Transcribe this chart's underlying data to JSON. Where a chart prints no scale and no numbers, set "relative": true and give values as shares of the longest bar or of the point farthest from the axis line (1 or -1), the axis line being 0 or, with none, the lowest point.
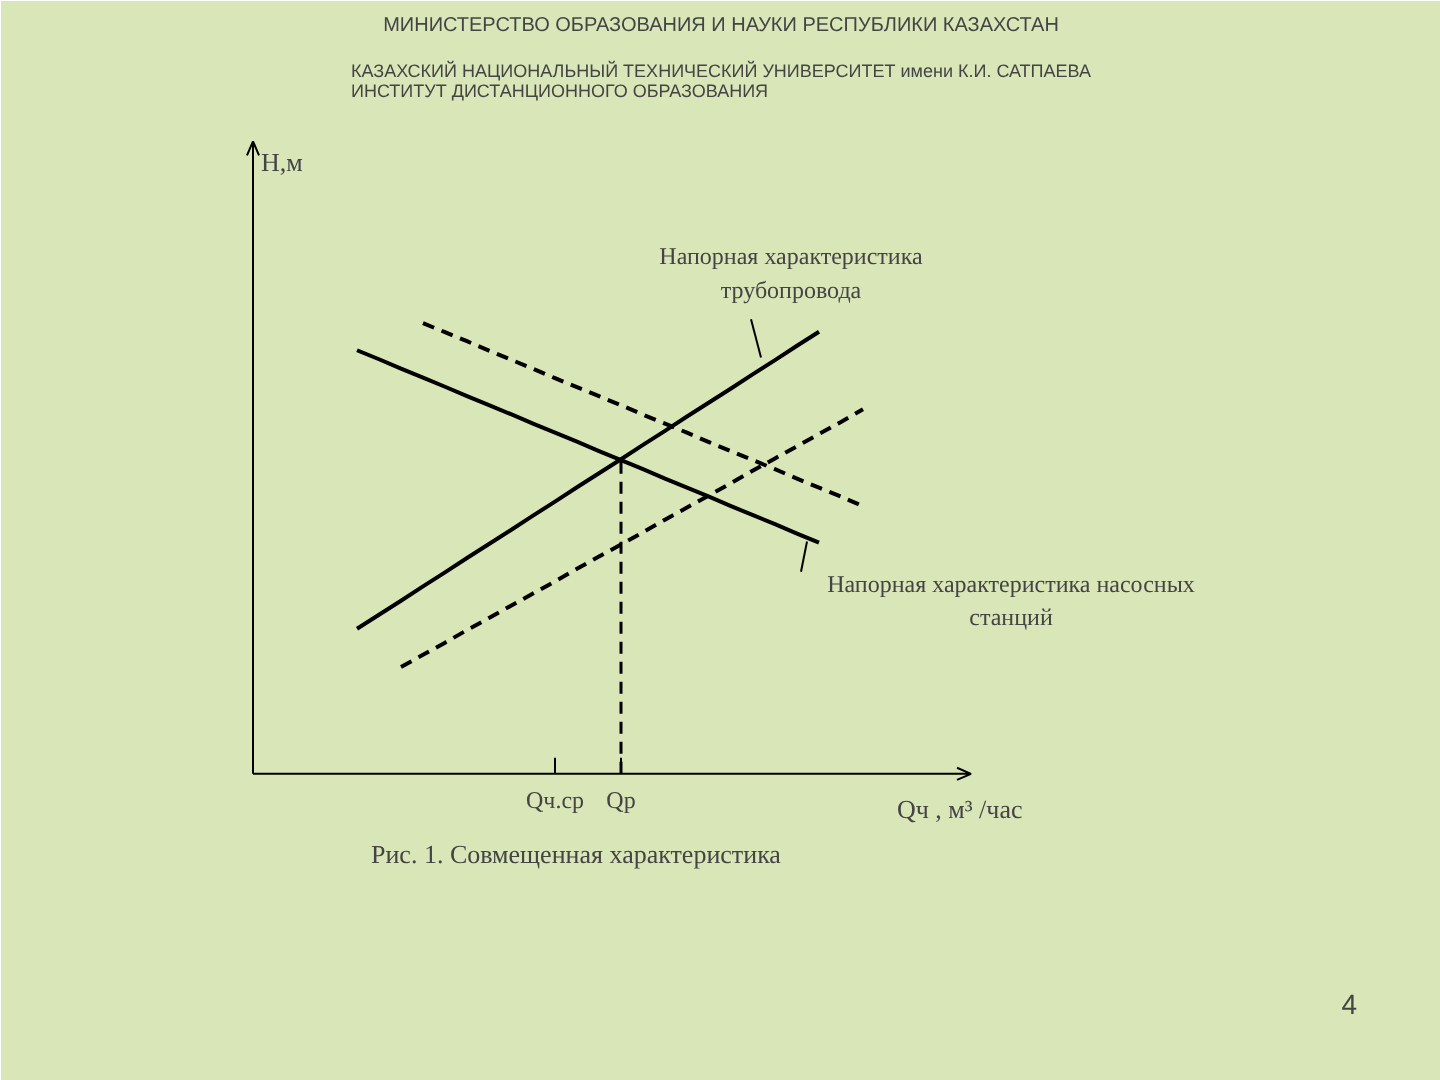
{
  "chart_data": {
    "type": "line",
    "relative": true,
    "title": "МИНИСТЕРСТВО ОБРАЗОВАНИЯ И НАУКИ РЕСПУБЛИКИ КАЗАХСТАН",
    "subtitle": "КАЗАХСКИЙ НАЦИОНАЛЬНЫЙ ТЕХНИЧЕСКИЙ УНИВЕРСИТЕТ имени К.И. САТПАЕВА\nИНСТИТУТ ДИСТАНЦИОННОГО ОБРАЗОВАНИЯ",
    "xlabel": "Qч , м³ /час",
    "categories": [
      null,
      null,
      null,
      null,
      null,
      null,
      null,
      null,
      null,
      "Qч.ср",
      null,
      null,
      "Qр",
      null,
      null,
      null,
      null,
      null,
      null,
      null,
      null,
      null,
      null,
      null
    ],
    "grid": false,
    "marker": "none",
    "series": [
      {
        "color": "#000000",
        "line_style": "solid",
        "values": [
          0.322,
          0.353,
          0.384,
          0.416,
          0.447,
          0.479,
          0.51,
          0.541,
          0.573,
          0.604,
          0.636,
          0.667,
          0.698,
          0.73,
          0.761,
          0.793,
          0.824,
          0.855,
          0.887,
          0.918,
          0.95,
          0.981,
          null,
          null
        ]
      },
      {
        "color": "#000000",
        "line_style": "solid",
        "values": [
          0.94,
          0.92,
          0.899,
          0.879,
          0.859,
          0.838,
          0.818,
          0.798,
          0.777,
          0.757,
          0.737,
          0.716,
          0.696,
          0.676,
          0.655,
          0.635,
          0.615,
          0.594,
          0.574,
          0.554,
          0.533,
          0.513,
          null,
          null
        ]
      },
      {
        "color": "#000000",
        "line_style": "dashed",
        "values": [
          null,
          null,
          null,
          1.0,
          0.98,
          0.96,
          0.939,
          0.919,
          0.899,
          0.878,
          0.858,
          0.838,
          0.818,
          0.797,
          0.777,
          0.757,
          0.736,
          0.716,
          0.696,
          0.676,
          0.655,
          0.635,
          0.615,
          0.594
        ]
      },
      {
        "color": "#000000",
        "line_style": "dashed",
        "values": [
          null,
          null,
          0.237,
          0.264,
          0.291,
          0.319,
          0.346,
          0.373,
          0.4,
          0.427,
          0.455,
          0.482,
          0.509,
          0.536,
          0.564,
          0.591,
          0.618,
          0.645,
          0.673,
          0.7,
          0.727,
          0.754,
          0.781,
          0.809
        ]
      }
    ],
    "ref_lines": [
      {
        "axis": "x",
        "value": "Qр",
        "color": "#000000",
        "line_style": "dashed"
      }
    ],
    "annotations": [
      "Напорная характеристика\nтрубопровода",
      "Напорная характеристика насосных\nстанций",
      "Рис. 1. Совмещенная характеристика",
      "4",
      "H,м"
    ]
  }
}
